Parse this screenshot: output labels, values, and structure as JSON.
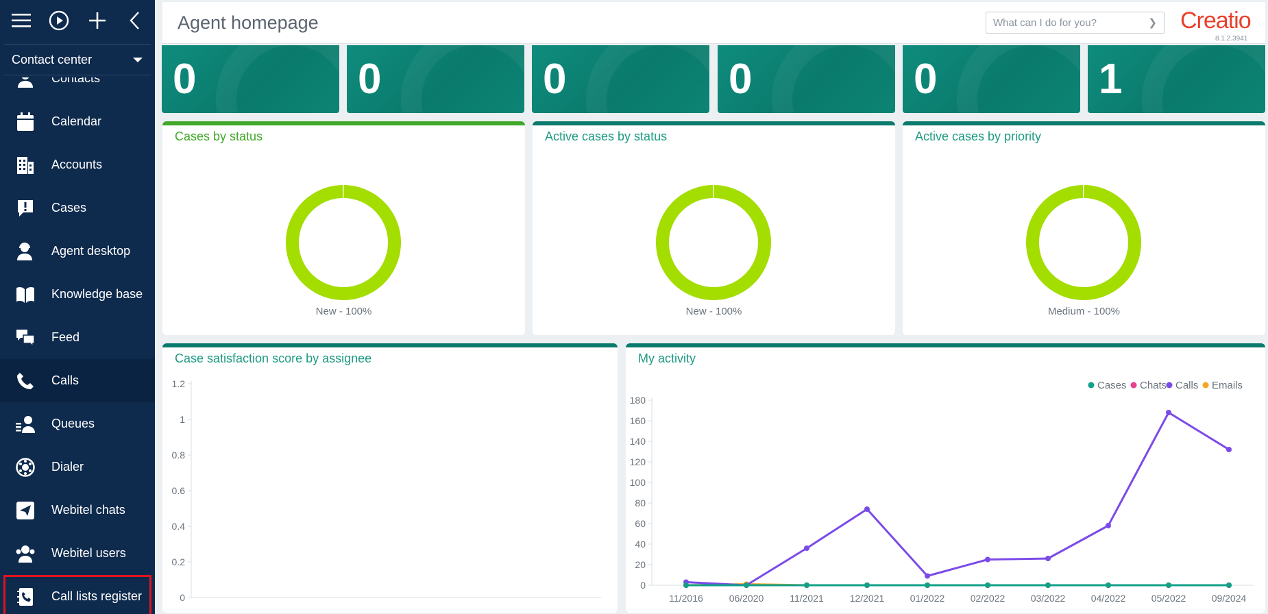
{
  "sidebar": {
    "workspace": "Contact center",
    "items": [
      {
        "label": "Contacts",
        "icon": "contact-icon"
      },
      {
        "label": "Calendar",
        "icon": "calendar-icon"
      },
      {
        "label": "Accounts",
        "icon": "building-icon"
      },
      {
        "label": "Cases",
        "icon": "case-alert-icon"
      },
      {
        "label": "Agent desktop",
        "icon": "agent-icon"
      },
      {
        "label": "Knowledge base",
        "icon": "book-icon"
      },
      {
        "label": "Feed",
        "icon": "chat-bubbles-icon"
      },
      {
        "label": "Calls",
        "icon": "phone-icon"
      },
      {
        "label": "Queues",
        "icon": "queue-icon"
      },
      {
        "label": "Dialer",
        "icon": "dialer-icon"
      },
      {
        "label": "Webitel chats",
        "icon": "send-icon"
      },
      {
        "label": "Webitel users",
        "icon": "users-icon"
      },
      {
        "label": "Call lists register",
        "icon": "call-list-icon"
      }
    ],
    "active_item": "Calls",
    "highlighted_item": "Call lists register"
  },
  "header": {
    "title": "Agent homepage",
    "search_placeholder": "What can I do for you?",
    "logo": "Creatio",
    "version": "8.1.2.3941"
  },
  "kpis": [
    "0",
    "0",
    "0",
    "0",
    "0",
    "1"
  ],
  "colors": {
    "sidebar_bg": "#0e2a4d",
    "tile_teal": "#0a7a6c",
    "donut_green": "#a4dd00",
    "accent_teal": "#1d9a83",
    "logo_red": "#e8412c",
    "highlight_red": "#e0141e"
  },
  "chart_data": [
    {
      "type": "pie",
      "title": "Cases by status",
      "slices": [
        {
          "label": "New",
          "value": 100
        }
      ],
      "slice_label": "New - 100%"
    },
    {
      "type": "pie",
      "title": "Active cases by status",
      "slices": [
        {
          "label": "New",
          "value": 100
        }
      ],
      "slice_label": "New - 100%"
    },
    {
      "type": "pie",
      "title": "Active cases by priority",
      "slices": [
        {
          "label": "Medium",
          "value": 100
        }
      ],
      "slice_label": "Medium - 100%"
    },
    {
      "type": "bar",
      "title": "Case satisfaction score by assignee",
      "categories": [],
      "values": [],
      "ylim": [
        0,
        1.2
      ],
      "yticks": [
        "1.2",
        "1",
        "0.8",
        "0.6",
        "0.4",
        "0.2",
        "0"
      ]
    },
    {
      "type": "line",
      "title": "My activity",
      "categories": [
        "11/2016",
        "06/2020",
        "11/2021",
        "12/2021",
        "01/2022",
        "02/2022",
        "03/2022",
        "04/2022",
        "05/2022",
        "09/2024"
      ],
      "ylim": [
        0,
        180
      ],
      "yticks": [
        "180",
        "160",
        "140",
        "120",
        "100",
        "80",
        "60",
        "40",
        "20",
        "0"
      ],
      "legend_position": "top-right",
      "series": [
        {
          "name": "Cases",
          "color": "#12a088",
          "values": [
            0,
            0,
            0,
            0,
            0,
            0,
            0,
            0,
            0,
            0
          ]
        },
        {
          "name": "Chats",
          "color": "#e83e8c",
          "values": [
            0,
            0,
            0,
            0,
            0,
            0,
            0,
            0,
            0,
            0
          ]
        },
        {
          "name": "Calls",
          "color": "#7b4be8",
          "values": [
            3,
            0,
            36,
            74,
            9,
            25,
            26,
            58,
            168,
            132
          ]
        },
        {
          "name": "Emails",
          "color": "#f5a623",
          "values": [
            0,
            1,
            0,
            0,
            0,
            0,
            0,
            0,
            0,
            0
          ]
        }
      ]
    }
  ]
}
